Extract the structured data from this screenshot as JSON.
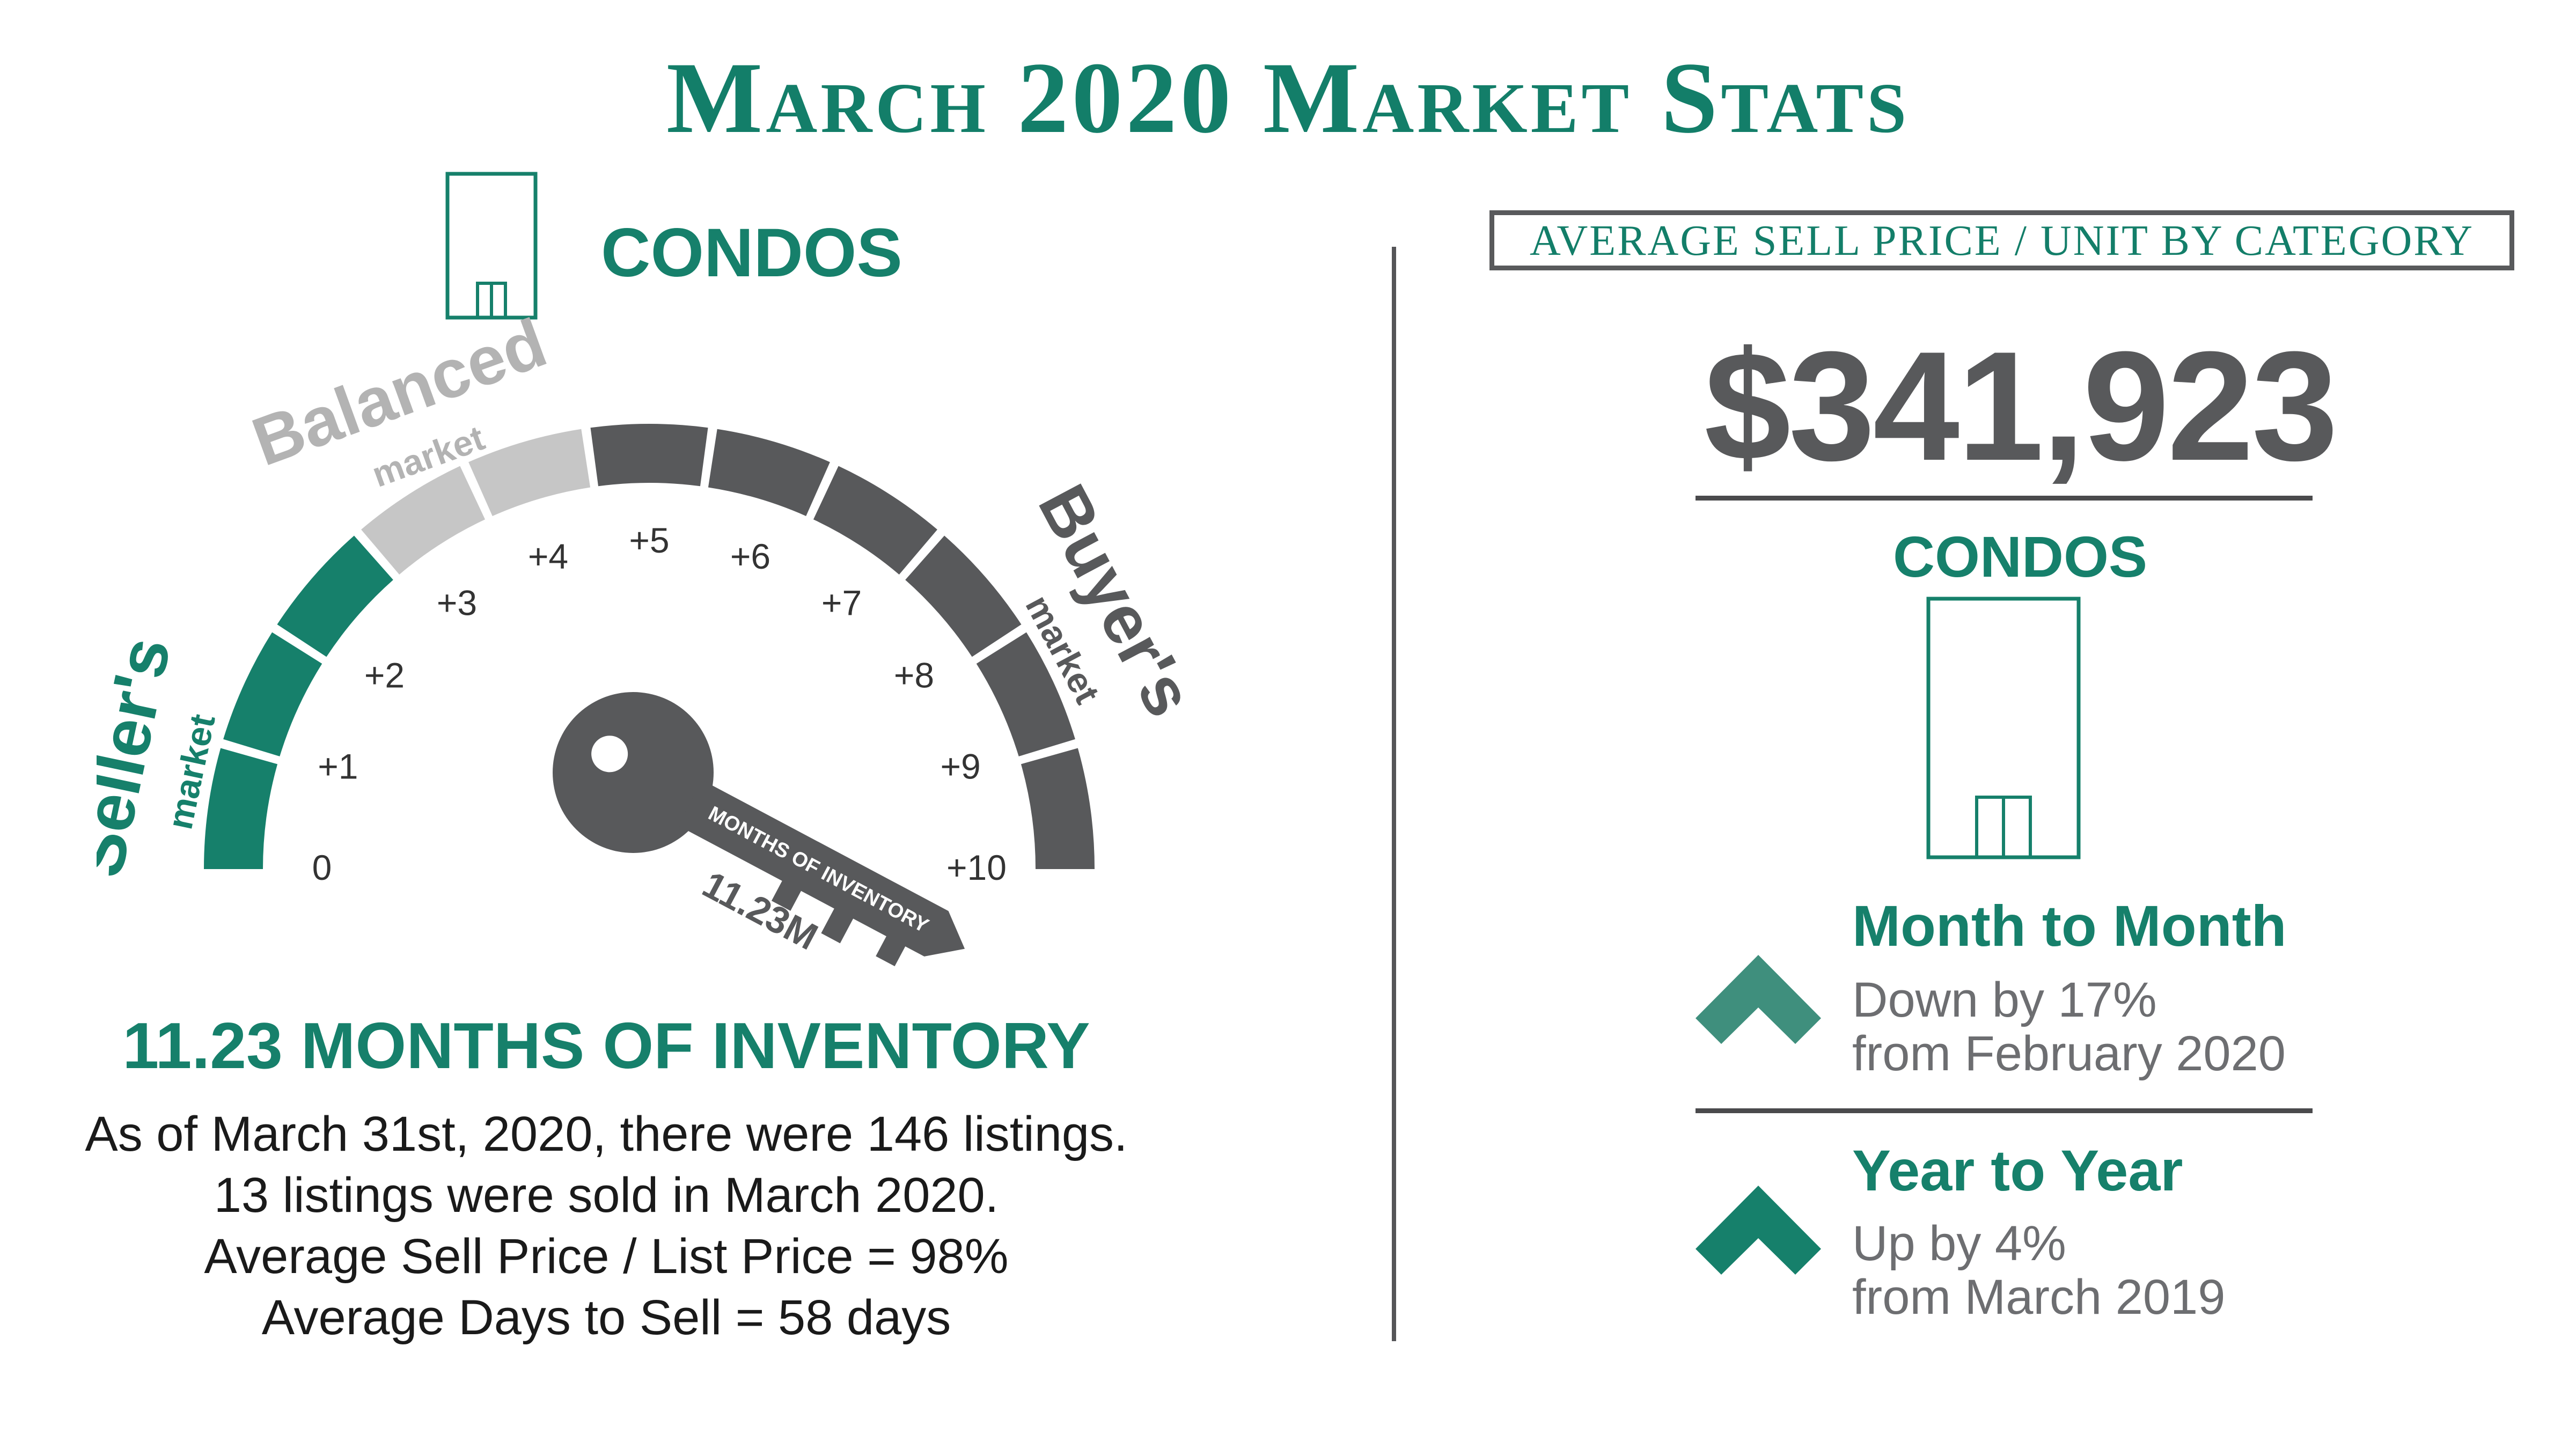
{
  "title": "March 2020 Market Stats",
  "colors": {
    "green": "#16806b",
    "gray": "#58595b",
    "light_gray": "#c6c6c6"
  },
  "left": {
    "category": "CONDOS",
    "icon": "condo-building-icon",
    "gauge": {
      "zones": [
        {
          "word": "Seller's",
          "sub": "market"
        },
        {
          "word": "Balanced",
          "sub": "market"
        },
        {
          "word": "Buyer's",
          "sub": "market"
        }
      ],
      "ticks": [
        "0",
        "+1",
        "+2",
        "+3",
        "+4",
        "+5",
        "+6",
        "+7",
        "+8",
        "+9",
        "+10"
      ],
      "key_label": "MONTHS OF INVENTORY",
      "key_value": "11.23M"
    },
    "headline": "11.23 MONTHS OF INVENTORY",
    "lines": [
      "As of March 31st, 2020, there were 146 listings.",
      "13 listings were sold in March 2020.",
      "Average Sell Price / List Price = 98%",
      "Average Days to Sell = 58 days"
    ]
  },
  "right": {
    "box_title": "AVERAGE SELL PRICE / UNIT BY CATEGORY",
    "price": "$341,923",
    "category": "CONDOS",
    "month": {
      "heading": "Month to Month",
      "line1": "Down by 17%",
      "line2": "from February 2020",
      "icon": "chevron-up-icon"
    },
    "year": {
      "heading": "Year to Year",
      "line1": "Up by 4%",
      "line2": "from March 2019",
      "icon": "chevron-up-icon"
    }
  }
}
